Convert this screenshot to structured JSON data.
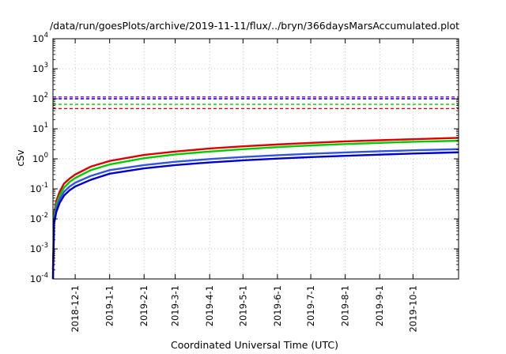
{
  "chart_data": {
    "type": "line",
    "title": "/data/run/goesPlots/archive/2019-11-11/flux/../bryn/366daysMarsAccumulated.plot",
    "xlabel": "Coordinated Universal Time (UTC)",
    "ylabel": "cSv",
    "y_scale": "log",
    "ylim": [
      0.0001,
      10000
    ],
    "xlim": [
      "2018-11-11",
      "2019-11-11"
    ],
    "grid": true,
    "legend": "none",
    "y_ticks": [
      {
        "mantissa": "10",
        "exp": "-4",
        "value": 0.0001
      },
      {
        "mantissa": "10",
        "exp": "-3",
        "value": 0.001
      },
      {
        "mantissa": "10",
        "exp": "-2",
        "value": 0.01
      },
      {
        "mantissa": "10",
        "exp": "-1",
        "value": 0.1
      },
      {
        "mantissa": "10",
        "exp": "0",
        "value": 1
      },
      {
        "mantissa": "10",
        "exp": "1",
        "value": 10
      },
      {
        "mantissa": "10",
        "exp": "2",
        "value": 100
      },
      {
        "mantissa": "10",
        "exp": "3",
        "value": 1000
      },
      {
        "mantissa": "10",
        "exp": "4",
        "value": 10000
      }
    ],
    "x_ticks": [
      {
        "label": "2018-12-1",
        "date": "2018-12-01"
      },
      {
        "label": "2019-1-1",
        "date": "2019-01-01"
      },
      {
        "label": "2019-2-1",
        "date": "2019-02-01"
      },
      {
        "label": "2019-3-1",
        "date": "2019-03-01"
      },
      {
        "label": "2019-4-1",
        "date": "2019-04-01"
      },
      {
        "label": "2019-5-1",
        "date": "2019-05-01"
      },
      {
        "label": "2019-6-1",
        "date": "2019-06-01"
      },
      {
        "label": "2019-7-1",
        "date": "2019-07-01"
      },
      {
        "label": "2019-8-1",
        "date": "2019-08-01"
      },
      {
        "label": "2019-9-1",
        "date": "2019-09-01"
      },
      {
        "label": "2019-10-1",
        "date": "2019-10-01"
      }
    ],
    "thresholds": [
      {
        "color": "#9900cc",
        "value": 115
      },
      {
        "color": "#0000cc",
        "value": 100
      },
      {
        "color": "#00cc00",
        "value": 65
      },
      {
        "color": "#dd0000",
        "value": 47
      }
    ],
    "series": [
      {
        "color": "#dd0000",
        "x": [
          "2018-11-11",
          "2018-11-12",
          "2018-11-14",
          "2018-11-17",
          "2018-11-21",
          "2018-11-26",
          "2018-12-01",
          "2018-12-15",
          "2019-01-01",
          "2019-02-01",
          "2019-03-01",
          "2019-04-01",
          "2019-05-01",
          "2019-06-01",
          "2019-07-01",
          "2019-08-01",
          "2019-09-01",
          "2019-10-01",
          "2019-11-11"
        ],
        "y": [
          0.0002,
          0.015,
          0.04,
          0.08,
          0.15,
          0.22,
          0.3,
          0.55,
          0.85,
          1.35,
          1.75,
          2.2,
          2.6,
          3.0,
          3.4,
          3.8,
          4.15,
          4.5,
          5.0
        ]
      },
      {
        "color": "#00cc00",
        "x": [
          "2018-11-11",
          "2018-11-12",
          "2018-11-14",
          "2018-11-17",
          "2018-11-21",
          "2018-11-26",
          "2018-12-01",
          "2018-12-15",
          "2019-01-01",
          "2019-02-01",
          "2019-03-01",
          "2019-04-01",
          "2019-05-01",
          "2019-06-01",
          "2019-07-01",
          "2019-08-01",
          "2019-09-01",
          "2019-10-01",
          "2019-11-11"
        ],
        "y": [
          0.00015,
          0.012,
          0.03,
          0.06,
          0.11,
          0.17,
          0.23,
          0.42,
          0.65,
          1.05,
          1.4,
          1.75,
          2.1,
          2.45,
          2.8,
          3.1,
          3.4,
          3.7,
          4.0
        ]
      },
      {
        "color": "#3355dd",
        "x": [
          "2018-11-11",
          "2018-11-12",
          "2018-11-14",
          "2018-11-17",
          "2018-11-21",
          "2018-11-26",
          "2018-12-01",
          "2018-12-15",
          "2019-01-01",
          "2019-02-01",
          "2019-03-01",
          "2019-04-01",
          "2019-05-01",
          "2019-06-01",
          "2019-07-01",
          "2019-08-01",
          "2019-09-01",
          "2019-10-01",
          "2019-11-11"
        ],
        "y": [
          0.0001,
          0.009,
          0.022,
          0.045,
          0.08,
          0.12,
          0.16,
          0.27,
          0.42,
          0.62,
          0.8,
          0.98,
          1.15,
          1.32,
          1.48,
          1.63,
          1.78,
          1.92,
          2.1
        ]
      },
      {
        "color": "#0000cc",
        "x": [
          "2018-11-11",
          "2018-11-12",
          "2018-11-14",
          "2018-11-17",
          "2018-11-21",
          "2018-11-26",
          "2018-12-01",
          "2018-12-15",
          "2019-01-01",
          "2019-02-01",
          "2019-03-01",
          "2019-04-01",
          "2019-05-01",
          "2019-06-01",
          "2019-07-01",
          "2019-08-01",
          "2019-09-01",
          "2019-10-01",
          "2019-11-11"
        ],
        "y": [
          0.0001,
          0.007,
          0.017,
          0.034,
          0.06,
          0.09,
          0.12,
          0.2,
          0.32,
          0.48,
          0.62,
          0.76,
          0.89,
          1.02,
          1.14,
          1.26,
          1.38,
          1.5,
          1.65
        ]
      }
    ]
  }
}
